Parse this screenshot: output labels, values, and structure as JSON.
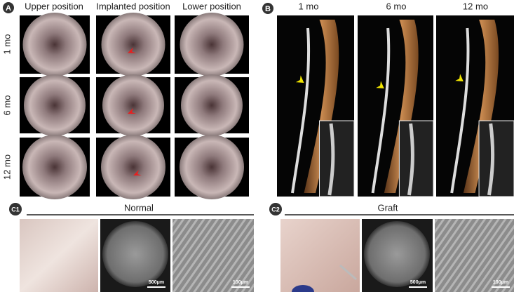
{
  "panel_a": {
    "label": "A",
    "columns": [
      "Upper position",
      "Implanted position",
      "Lower position"
    ],
    "rows": [
      "1 mo",
      "6 mo",
      "12 mo"
    ]
  },
  "panel_b": {
    "label": "B",
    "columns": [
      "1 mo",
      "6 mo",
      "12 mo"
    ]
  },
  "panel_c1": {
    "label": "C1",
    "title": "Normal",
    "scale_bars": [
      "500μm",
      "100μm"
    ]
  },
  "panel_c2": {
    "label": "C2",
    "title": "Graft",
    "scale_bars": [
      "500μm",
      "100μm"
    ]
  }
}
